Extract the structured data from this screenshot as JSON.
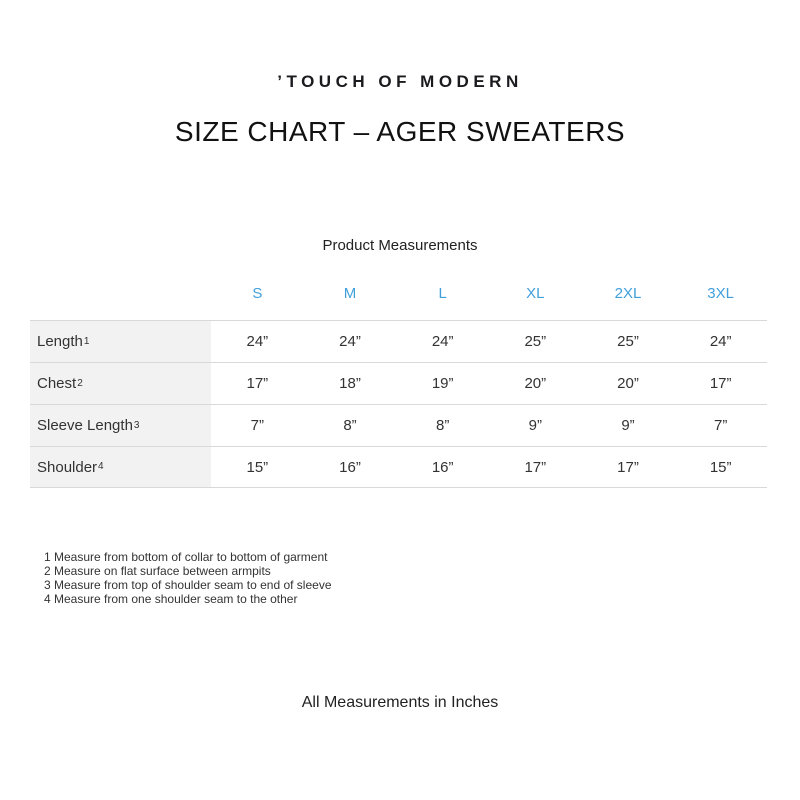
{
  "brand": {
    "logo": "’TOUCH OF MODERN"
  },
  "title": "SIZE CHART – AGER SWEATERS",
  "table": {
    "caption": "Product Measurements",
    "size_headers": [
      "S",
      "M",
      "L",
      "XL",
      "2XL",
      "3XL"
    ],
    "rows": [
      {
        "label": "Length",
        "sup": "1",
        "values": [
          "24”",
          "24”",
          "24”",
          "25”",
          "25”",
          "24”"
        ]
      },
      {
        "label": "Chest",
        "sup": "2",
        "values": [
          "17”",
          "18”",
          "19”",
          "20”",
          "20”",
          "17”"
        ]
      },
      {
        "label": "Sleeve Length",
        "sup": "3",
        "values": [
          "7”",
          "8”",
          "8”",
          "9”",
          "9”",
          "7”"
        ]
      },
      {
        "label": "Shoulder",
        "sup": "4",
        "values": [
          "15”",
          "16”",
          "16”",
          "17”",
          "17”",
          "15”"
        ]
      }
    ]
  },
  "footnotes": [
    "1 Measure from bottom of collar to bottom of garment",
    "2 Measure on flat surface between armpits",
    "3 Measure from top of shoulder seam to end of sleeve",
    "4 Measure from one shoulder seam to the other"
  ],
  "footer": "All Measurements in Inches",
  "colors": {
    "size_header_blue": "#41a0db",
    "label_column_bg": "#f2f2f2",
    "divider": "#d9d9d9",
    "text": "#333333"
  }
}
